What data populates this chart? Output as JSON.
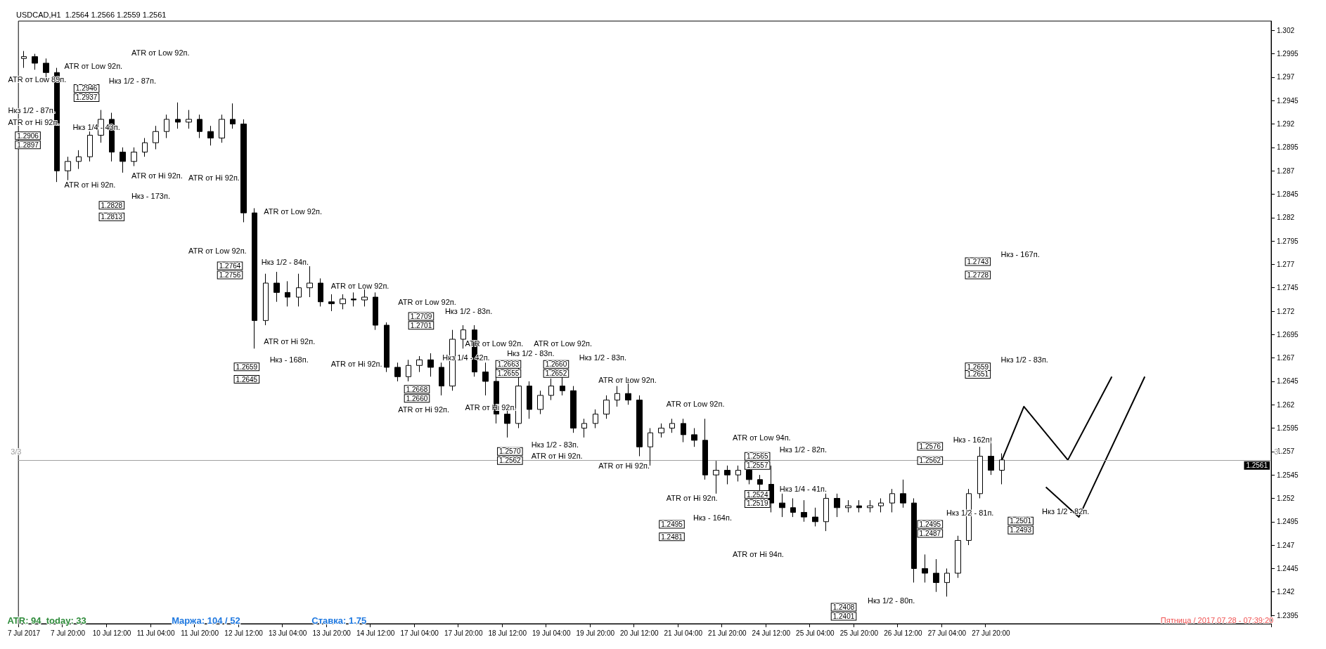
{
  "chart_data": {
    "type": "candlestick",
    "title": "USDCAD,H1  1.2564 1.2566 1.2559 1.2561",
    "categories": [
      "7 Jul 2017",
      null,
      null,
      null,
      "7 Jul 20:00",
      null,
      null,
      null,
      "10 Jul 12:00",
      null,
      null,
      null,
      "11 Jul 04:00",
      null,
      null,
      null,
      "11 Jul 20:00",
      null,
      null,
      null,
      "12 Jul 12:00",
      null,
      null,
      null,
      "13 Jul 04:00",
      null,
      null,
      null,
      "13 Jul 20:00",
      null,
      null,
      null,
      "14 Jul 12:00",
      null,
      null,
      null,
      "17 Jul 04:00",
      null,
      null,
      null,
      "17 Jul 20:00",
      null,
      null,
      null,
      "18 Jul 12:00",
      null,
      null,
      null,
      "19 Jul 04:00",
      null,
      null,
      null,
      "19 Jul 20:00",
      null,
      null,
      null,
      "20 Jul 12:00",
      null,
      null,
      null,
      "21 Jul 04:00",
      null,
      null,
      null,
      "21 Jul 20:00",
      null,
      null,
      null,
      "24 Jul 12:00",
      null,
      null,
      null,
      "25 Jul 04:00",
      null,
      null,
      null,
      "25 Jul 20:00",
      null,
      null,
      null,
      "26 Jul 12:00",
      null,
      null,
      null,
      "27 Jul 04:00",
      null,
      null,
      null,
      "27 Jul 20:00",
      null,
      null,
      null,
      null,
      null,
      null,
      null,
      null,
      null,
      null,
      null,
      null,
      null,
      null,
      null,
      null,
      null,
      null,
      null,
      null,
      null,
      null,
      null,
      null,
      null
    ],
    "series": [
      {
        "color": "#000000",
        "ohlc": [
          [
            1.299,
            1.2998,
            1.298,
            1.2992
          ],
          [
            1.2992,
            1.2995,
            1.2978,
            1.2985
          ],
          [
            1.2985,
            1.299,
            1.2965,
            1.2975
          ],
          [
            1.2975,
            1.298,
            1.2858,
            1.287
          ],
          [
            1.287,
            1.2885,
            1.286,
            1.288
          ],
          [
            1.288,
            1.2892,
            1.2872,
            1.2885
          ],
          [
            1.2885,
            1.2912,
            1.288,
            1.2908
          ],
          [
            1.2908,
            1.2935,
            1.29,
            1.2925
          ],
          [
            1.2925,
            1.2932,
            1.288,
            1.289
          ],
          [
            1.289,
            1.2895,
            1.2868,
            1.288
          ],
          [
            1.288,
            1.2895,
            1.2875,
            1.289
          ],
          [
            1.289,
            1.2905,
            1.2885,
            1.29
          ],
          [
            1.29,
            1.2918,
            1.2893,
            1.2912
          ],
          [
            1.2912,
            1.293,
            1.2905,
            1.2925
          ],
          [
            1.2925,
            1.2943,
            1.2915,
            1.2922
          ],
          [
            1.2922,
            1.2935,
            1.2915,
            1.2925
          ],
          [
            1.2925,
            1.293,
            1.2905,
            1.2912
          ],
          [
            1.2912,
            1.2918,
            1.2897,
            1.2905
          ],
          [
            1.2905,
            1.293,
            1.29,
            1.2925
          ],
          [
            1.2925,
            1.2942,
            1.2915,
            1.292
          ],
          [
            1.292,
            1.2925,
            1.2815,
            1.2825
          ],
          [
            1.2825,
            1.283,
            1.268,
            1.271
          ],
          [
            1.271,
            1.276,
            1.2705,
            1.275
          ],
          [
            1.275,
            1.2762,
            1.273,
            1.274
          ],
          [
            1.274,
            1.2752,
            1.2725,
            1.2735
          ],
          [
            1.2735,
            1.276,
            1.2725,
            1.2745
          ],
          [
            1.2745,
            1.2768,
            1.2735,
            1.275
          ],
          [
            1.275,
            1.2755,
            1.2725,
            1.273
          ],
          [
            1.273,
            1.2738,
            1.272,
            1.2728
          ],
          [
            1.2728,
            1.2738,
            1.2722,
            1.2733
          ],
          [
            1.2733,
            1.274,
            1.2725,
            1.2732
          ],
          [
            1.2732,
            1.2745,
            1.2725,
            1.2735
          ],
          [
            1.2735,
            1.274,
            1.27,
            1.2705
          ],
          [
            1.2705,
            1.2708,
            1.2655,
            1.266
          ],
          [
            1.266,
            1.2665,
            1.2645,
            1.265
          ],
          [
            1.265,
            1.2668,
            1.2645,
            1.2662
          ],
          [
            1.2662,
            1.2672,
            1.2655,
            1.2668
          ],
          [
            1.2668,
            1.2675,
            1.265,
            1.266
          ],
          [
            1.266,
            1.2665,
            1.263,
            1.264
          ],
          [
            1.264,
            1.27,
            1.2635,
            1.269
          ],
          [
            1.269,
            1.2705,
            1.268,
            1.27
          ],
          [
            1.27,
            1.2705,
            1.265,
            1.2655
          ],
          [
            1.2655,
            1.2665,
            1.263,
            1.2645
          ],
          [
            1.2645,
            1.266,
            1.26,
            1.261
          ],
          [
            1.261,
            1.262,
            1.2585,
            1.26
          ],
          [
            1.26,
            1.2665,
            1.2595,
            1.264
          ],
          [
            1.264,
            1.2645,
            1.2605,
            1.2615
          ],
          [
            1.2615,
            1.2635,
            1.261,
            1.263
          ],
          [
            1.263,
            1.2648,
            1.2625,
            1.264
          ],
          [
            1.264,
            1.265,
            1.263,
            1.2635
          ],
          [
            1.2635,
            1.264,
            1.259,
            1.2595
          ],
          [
            1.2595,
            1.2605,
            1.2585,
            1.26
          ],
          [
            1.26,
            1.2615,
            1.2595,
            1.261
          ],
          [
            1.261,
            1.263,
            1.2605,
            1.2625
          ],
          [
            1.2625,
            1.264,
            1.2618,
            1.2632
          ],
          [
            1.2632,
            1.2648,
            1.262,
            1.2625
          ],
          [
            1.2625,
            1.263,
            1.2565,
            1.2575
          ],
          [
            1.2575,
            1.2595,
            1.2555,
            1.259
          ],
          [
            1.259,
            1.26,
            1.2585,
            1.2595
          ],
          [
            1.2595,
            1.2605,
            1.259,
            1.26
          ],
          [
            1.26,
            1.2605,
            1.258,
            1.2588
          ],
          [
            1.2588,
            1.2595,
            1.2575,
            1.2582
          ],
          [
            1.2582,
            1.2605,
            1.254,
            1.2545
          ],
          [
            1.2545,
            1.256,
            1.2525,
            1.255
          ],
          [
            1.255,
            1.2555,
            1.2535,
            1.2545
          ],
          [
            1.2545,
            1.2555,
            1.2538,
            1.255
          ],
          [
            1.255,
            1.2555,
            1.2535,
            1.254
          ],
          [
            1.254,
            1.2545,
            1.2525,
            1.2535
          ],
          [
            1.2535,
            1.2555,
            1.2505,
            1.2515
          ],
          [
            1.2515,
            1.2525,
            1.25,
            1.251
          ],
          [
            1.251,
            1.252,
            1.25,
            1.2505
          ],
          [
            1.2505,
            1.2518,
            1.2495,
            1.25
          ],
          [
            1.25,
            1.251,
            1.249,
            1.2495
          ],
          [
            1.2495,
            1.2525,
            1.2485,
            1.252
          ],
          [
            1.252,
            1.2525,
            1.25,
            1.251
          ],
          [
            1.251,
            1.2518,
            1.2505,
            1.2512
          ],
          [
            1.2512,
            1.2518,
            1.2505,
            1.251
          ],
          [
            1.251,
            1.2518,
            1.2505,
            1.2512
          ],
          [
            1.2512,
            1.252,
            1.2505,
            1.2515
          ],
          [
            1.2515,
            1.253,
            1.2505,
            1.2525
          ],
          [
            1.2525,
            1.254,
            1.251,
            1.2515
          ],
          [
            1.2515,
            1.252,
            1.243,
            1.2445
          ],
          [
            1.2445,
            1.246,
            1.243,
            1.244
          ],
          [
            1.244,
            1.2455,
            1.242,
            1.243
          ],
          [
            1.243,
            1.2445,
            1.2415,
            1.244
          ],
          [
            1.244,
            1.248,
            1.2435,
            1.2475
          ],
          [
            1.2475,
            1.253,
            1.247,
            1.2525
          ],
          [
            1.2525,
            1.2575,
            1.252,
            1.2565
          ],
          [
            1.2565,
            1.2585,
            1.2545,
            1.255
          ],
          [
            1.255,
            1.2568,
            1.2535,
            1.2561
          ],
          null,
          null,
          null,
          null,
          null,
          null,
          null,
          null,
          null,
          null,
          null,
          null,
          null,
          null,
          null,
          null,
          null,
          null,
          null,
          null,
          null,
          null,
          null,
          null
        ]
      },
      {
        "type": "line",
        "color": "#000000",
        "values": [
          null,
          null,
          null,
          null,
          null,
          null,
          null,
          null,
          null,
          null,
          null,
          null,
          null,
          null,
          null,
          null,
          null,
          null,
          null,
          null,
          null,
          null,
          null,
          null,
          null,
          null,
          null,
          null,
          null,
          null,
          null,
          null,
          null,
          null,
          null,
          null,
          null,
          null,
          null,
          null,
          null,
          null,
          null,
          null,
          null,
          null,
          null,
          null,
          null,
          null,
          null,
          null,
          null,
          null,
          null,
          null,
          null,
          null,
          null,
          null,
          null,
          null,
          null,
          null,
          null,
          null,
          null,
          null,
          null,
          null,
          null,
          null,
          null,
          null,
          null,
          null,
          null,
          null,
          null,
          null,
          null,
          null,
          null,
          null,
          null,
          null,
          null,
          null,
          null,
          1.2561,
          null,
          1.2618,
          null,
          null,
          null,
          1.2561,
          null,
          null,
          null,
          1.265,
          null,
          null,
          null,
          null,
          null,
          null,
          null,
          null,
          null,
          null,
          null,
          null,
          null,
          null
        ]
      },
      {
        "type": "line",
        "color": "#000000",
        "values": [
          null,
          null,
          null,
          null,
          null,
          null,
          null,
          null,
          null,
          null,
          null,
          null,
          null,
          null,
          null,
          null,
          null,
          null,
          null,
          null,
          null,
          null,
          null,
          null,
          null,
          null,
          null,
          null,
          null,
          null,
          null,
          null,
          null,
          null,
          null,
          null,
          null,
          null,
          null,
          null,
          null,
          null,
          null,
          null,
          null,
          null,
          null,
          null,
          null,
          null,
          null,
          null,
          null,
          null,
          null,
          null,
          null,
          null,
          null,
          null,
          null,
          null,
          null,
          null,
          null,
          null,
          null,
          null,
          null,
          null,
          null,
          null,
          null,
          null,
          null,
          null,
          null,
          null,
          null,
          null,
          null,
          null,
          null,
          null,
          null,
          null,
          null,
          null,
          null,
          null,
          null,
          null,
          null,
          1.2532,
          null,
          null,
          1.25,
          null,
          null,
          null,
          null,
          null,
          1.265,
          null,
          null,
          null,
          null,
          null,
          null,
          null,
          null,
          null,
          null,
          null
        ]
      }
    ],
    "ylim": [
      1.2386,
      1.303
    ],
    "yticks": [
      1.2395,
      1.242,
      1.2445,
      1.247,
      1.2495,
      1.252,
      1.2545,
      1.257,
      1.2595,
      1.262,
      1.2645,
      1.267,
      1.2695,
      1.272,
      1.2745,
      1.277,
      1.2795,
      1.282,
      1.2845,
      1.287,
      1.2895,
      1.292,
      1.2945,
      1.297,
      1.2995,
      1.302
    ],
    "marker": "none",
    "line_style": "solid",
    "ref_lines": [
      {
        "axis": "y",
        "value": 1.2561,
        "label": "1.2561",
        "color": "#a0a0a0"
      }
    ],
    "annotations": [
      "ATR от Low 92п.",
      "ATR от Low 92п.",
      "ATR от Low 89п.",
      "Нкз 1/2 - 87п.",
      "1.2946",
      "1.2937",
      "Нкз 1/2 - 87п.",
      "ATR от Hi 92п.",
      "Нкз 1/4 - 43п.",
      "1.2906",
      "1.2897",
      "ATR от Hi 92п.",
      "ATR от Hi 92п.",
      "ATR от Hi 92п.",
      "1.2828",
      "1.2813",
      "Нкз - 173п.",
      "ATR от Low 92п.",
      "ATR от Low 92п.",
      "Нкз 1/2 - 84п.",
      "1.2764",
      "1.2756",
      "ATR от Low 92п.",
      "ATR от Hi 92п.",
      "1.2659",
      "1.2645",
      "Нкз - 168п.",
      "ATR от Hi 92п.",
      "ATR от Low 92п.",
      "Нкз 1/2 - 83п.",
      "1.2709",
      "1.2701",
      "1.2668",
      "1.2660",
      "Нкз 1/4 - 42п.",
      "ATR от Low 92п.",
      "1.2663",
      "1.2655",
      "Нкз 1/2 - 83п.",
      "ATR от Low 92п.",
      "1.2660",
      "1.2652",
      "Нкз 1/2 - 83п.",
      "ATR от Hi 92п.",
      "ATR от Hi 92п.",
      "Нкз 1/2 - 83п.",
      "1.2570",
      "1.2562",
      "ATR от Hi 92п.",
      "ATR от Low 92п.",
      "ATR от Hi 92п.",
      "ATR от Low 92п.",
      "ATR от Low 94п.",
      "Нкз 1/2 - 82п.",
      "1.2565",
      "1.2557",
      "Нкз 1/4 - 41п.",
      "1.2524",
      "1.2519",
      "ATR от Hi 92п.",
      "Нкз - 164п.",
      "1.2495",
      "1.2481",
      "ATR от Hi 94п.",
      "Нкз 1/2 - 80п.",
      "1.2408",
      "1.2401",
      "Нкз - 162п.",
      "1.2576",
      "1.2562",
      "Нкз 1/2 - 81п.",
      "1.2495",
      "1.2487",
      "1.2501",
      "1.2493",
      "Нкз 1/2 - 82п.",
      "Нкз - 167п.",
      "1.2743",
      "1.2728",
      "Нкз 1/2 - 83п.",
      "1.2659",
      "1.2651",
      "3/3",
      "3",
      "ATR: 94  today: 33",
      "Маржа: 104 / 52",
      "Ставка: 1.75",
      "Пятница / 2017.07.28 - 07:39:20"
    ]
  }
}
